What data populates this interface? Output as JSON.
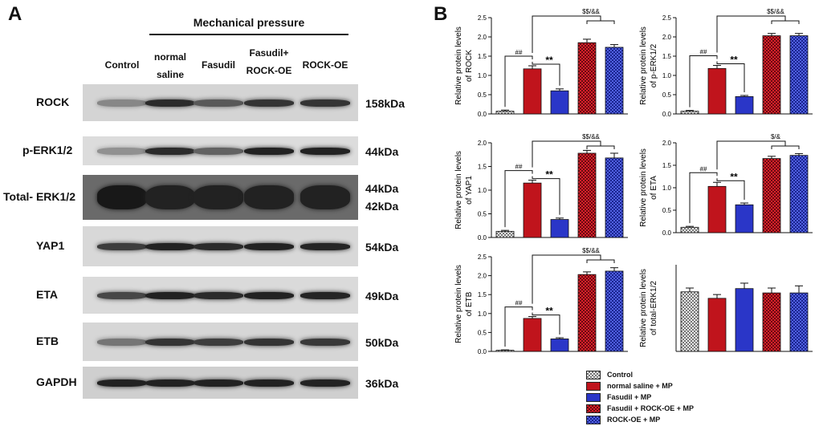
{
  "panel_a": {
    "letter": "A",
    "mp_header": "Mechanical pressure",
    "columns": [
      "Control",
      "normal\nsaline",
      "Fasudil",
      "Fasudil+\nROCK-OE",
      "ROCK-OE"
    ],
    "blots": [
      {
        "label": "ROCK",
        "kda": "158kDa",
        "intensity": [
          0.35,
          0.85,
          0.6,
          0.8,
          0.8
        ],
        "background": "#d4d4d4"
      },
      {
        "label": "p-ERK1/2",
        "kda": "44kDa",
        "intensity": [
          0.3,
          0.85,
          0.55,
          0.9,
          0.9
        ],
        "background": "#dcdcdc"
      },
      {
        "label": "Total- ERK1/2",
        "kda": "44kDa\n42kDa",
        "intensity": [
          0.95,
          0.9,
          0.9,
          0.9,
          0.9
        ],
        "background": "#6a6a6a"
      },
      {
        "label": "YAP1",
        "kda": "54kDa",
        "intensity": [
          0.75,
          0.9,
          0.85,
          0.9,
          0.88
        ],
        "background": "#d8d8d8"
      },
      {
        "label": "ETA",
        "kda": "49kDa",
        "intensity": [
          0.7,
          0.9,
          0.85,
          0.9,
          0.88
        ],
        "background": "#dadada"
      },
      {
        "label": "ETB",
        "kda": "50kDa",
        "intensity": [
          0.45,
          0.8,
          0.75,
          0.8,
          0.78
        ],
        "background": "#d6d6d6"
      },
      {
        "label": "GAPDH",
        "kda": "36kDa",
        "intensity": [
          0.9,
          0.9,
          0.9,
          0.9,
          0.9
        ],
        "background": "#cfcfcf"
      }
    ]
  },
  "panel_b": {
    "letter": "B"
  },
  "legend": [
    {
      "label": "Control",
      "pattern": "checker-gray"
    },
    {
      "label": "normal saline + MP",
      "pattern": "red"
    },
    {
      "label": "Fasudil + MP",
      "pattern": "blue"
    },
    {
      "label": "Fasudil + ROCK-OE + MP",
      "pattern": "red-check"
    },
    {
      "label": "ROCK-OE + MP",
      "pattern": "blue-check"
    }
  ],
  "colors": {
    "control": "#b0b0b0",
    "red": "#c0141c",
    "blue": "#2a36c8",
    "axis": "#111111"
  },
  "chart_data": [
    {
      "type": "bar",
      "ylabel": "Relative protein levels\nof ROCK",
      "ylim": [
        0,
        2.5
      ],
      "ticks": [
        "0.0",
        "0.5",
        "1.0",
        "1.5",
        "2.0",
        "2.5"
      ],
      "values": [
        0.07,
        1.17,
        0.6,
        1.85,
        1.73
      ],
      "errors": [
        0.03,
        0.08,
        0.05,
        0.09,
        0.07
      ],
      "sig_hash": "##",
      "sig_star": "**",
      "sig_top": "$$/&&"
    },
    {
      "type": "bar",
      "ylabel": "Relative protein levels\nof p-ERK1/2",
      "ylim": [
        0,
        2.5
      ],
      "ticks": [
        "0.0",
        "0.5",
        "1.0",
        "1.5",
        "2.0",
        "2.5"
      ],
      "values": [
        0.07,
        1.18,
        0.45,
        2.03,
        2.03
      ],
      "errors": [
        0.02,
        0.08,
        0.03,
        0.06,
        0.06
      ],
      "sig_hash": "##",
      "sig_star": "**",
      "sig_top": "$$/&&"
    },
    {
      "type": "bar",
      "ylabel": "Relative protein levels\nof YAP1",
      "ylim": [
        0,
        2.0
      ],
      "ticks": [
        "0.0",
        "0.5",
        "1.0",
        "1.5",
        "2.0"
      ],
      "values": [
        0.13,
        1.15,
        0.38,
        1.78,
        1.68
      ],
      "errors": [
        0.02,
        0.06,
        0.03,
        0.06,
        0.1
      ],
      "sig_hash": "##",
      "sig_star": "**",
      "sig_top": "$$/&&"
    },
    {
      "type": "bar",
      "ylabel": "Relative protein levels\nof ETA",
      "ylim": [
        0,
        2.0
      ],
      "ticks": [
        "0.0",
        "0.5",
        "1.0",
        "1.5",
        "2.0"
      ],
      "values": [
        0.12,
        1.03,
        0.62,
        1.65,
        1.72
      ],
      "errors": [
        0.02,
        0.09,
        0.04,
        0.05,
        0.04
      ],
      "sig_hash": "##",
      "sig_star": "**",
      "sig_top": "$/&"
    },
    {
      "type": "bar",
      "ylabel": "Relative protein levels\nof ETB",
      "ylim": [
        0,
        2.5
      ],
      "ticks": [
        "0.0",
        "0.5",
        "1.0",
        "1.5",
        "2.0",
        "2.5"
      ],
      "values": [
        0.03,
        0.87,
        0.33,
        2.03,
        2.12
      ],
      "errors": [
        0.01,
        0.05,
        0.03,
        0.07,
        0.09
      ],
      "sig_hash": "##",
      "sig_star": "**",
      "sig_top": "$$/&&"
    },
    {
      "type": "bar",
      "ylabel": "Relative protein levels\nof total-ERK1/2",
      "ylim": [
        0,
        1.6
      ],
      "ticks": [],
      "values": [
        1.1,
        0.98,
        1.16,
        1.08,
        1.08
      ],
      "errors": [
        0.07,
        0.07,
        0.1,
        0.09,
        0.13
      ],
      "sig_hash": "",
      "sig_star": "",
      "sig_top": ""
    }
  ]
}
